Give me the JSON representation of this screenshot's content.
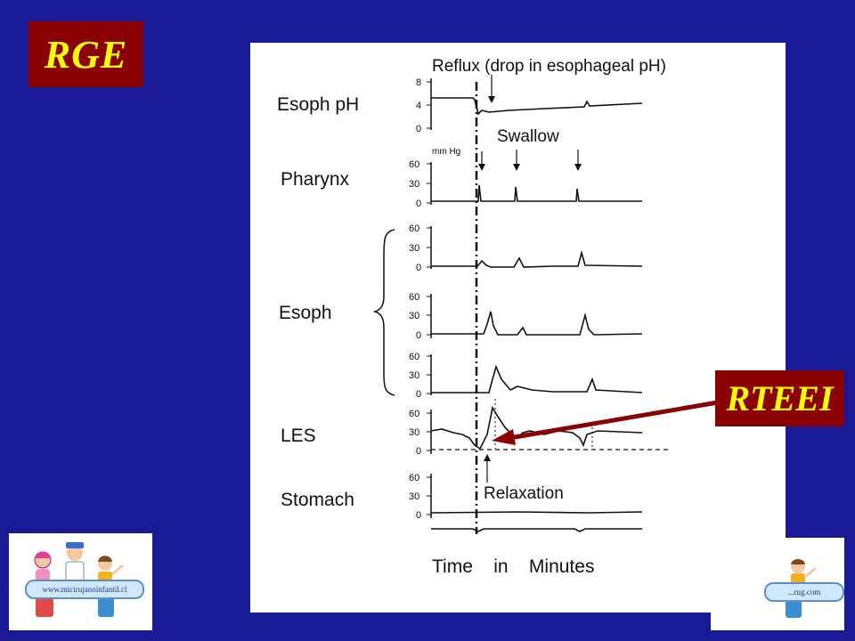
{
  "slide": {
    "title": "RGE",
    "callout": "RTEEI",
    "colors": {
      "background": "#1a1a96",
      "label_box": "#8b0000",
      "label_text": "#ffff00",
      "arrow": "#8b0000"
    }
  },
  "figure": {
    "annotations": {
      "reflux": "Reflux (drop in esophageal pH)",
      "swallow": "Swallow",
      "relaxation": "Relaxation",
      "time_axis": "Time    in    Minutes",
      "unit": "mm Hg"
    },
    "channels": [
      {
        "label": "Esoph pH",
        "ticks": [
          "8",
          "4",
          "0"
        ]
      },
      {
        "label": "Pharynx",
        "ticks": [
          "60",
          "30",
          "0"
        ]
      },
      {
        "label": "Esoph",
        "ticks": [
          "60",
          "30",
          "0"
        ]
      },
      {
        "label": "LES",
        "ticks": [
          "60",
          "30",
          "0"
        ]
      },
      {
        "label": "Stomach",
        "ticks": [
          "60",
          "30",
          "0"
        ]
      }
    ],
    "esoph_extra_ticks": [
      [
        "60",
        "30",
        "0"
      ],
      [
        "60",
        "30",
        "0"
      ]
    ]
  },
  "logos": {
    "left_text": "www.micirujanoinfantil.cl",
    "right_text": "...rug.com"
  }
}
